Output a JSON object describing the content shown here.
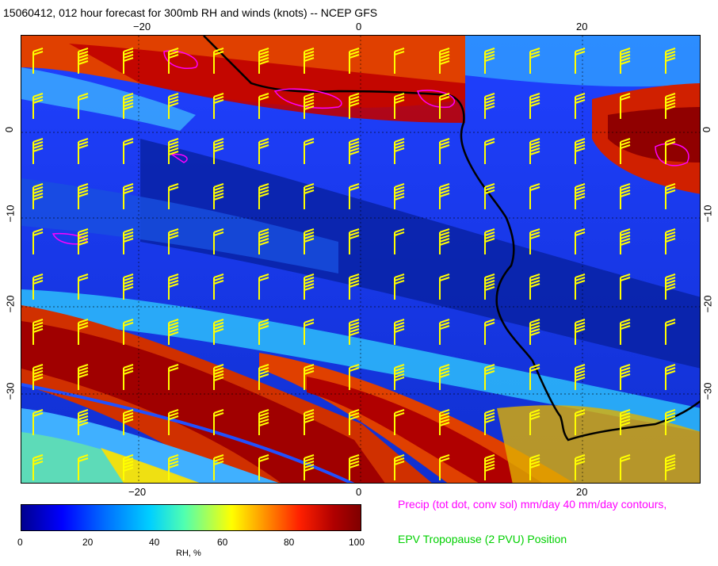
{
  "title": "15060412, 012 hour forecast for 300mb RH and winds (knots) -- NCEP GFS",
  "axes": {
    "x_ticks": [
      "−20",
      "0",
      "20"
    ],
    "y_ticks": [
      "0",
      "−10",
      "−20",
      "−30"
    ]
  },
  "colorbar": {
    "label": "RH, %",
    "ticks": [
      "0",
      "20",
      "40",
      "60",
      "80",
      "100"
    ]
  },
  "legend": {
    "precip": "Precip (tot dot, conv sol) mm/day 40 mm/day contours,",
    "epv": "EPV Tropopause (2 PVU) Position"
  },
  "colors": {
    "barbs": "#ffff00",
    "coast": "#000000",
    "precip": "#ff00ff",
    "epv": "#00d000"
  }
}
